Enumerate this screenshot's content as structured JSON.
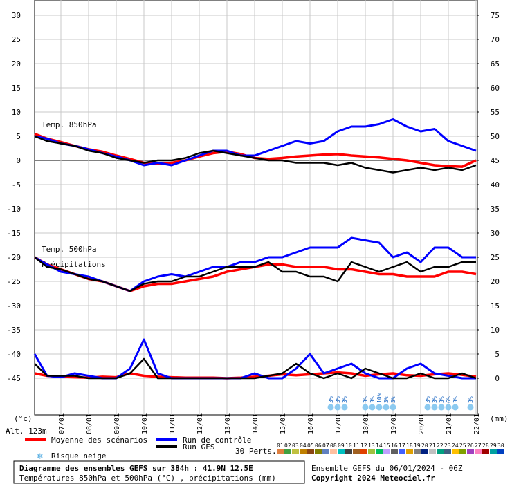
{
  "chart_data": {
    "type": "line",
    "title": "Diagramme des ensembles GEFS sur 384h : 41.9N 12.5E",
    "subtitle": "Températures 850hPa et 500hPa (°C) , précipitations (mm)",
    "run_label": "Ensemble GEFS du 06/01/2024 - 06Z",
    "copyright": "Copyright 2024 Meteociel.fr",
    "ylabel": "(°c)",
    "y2label": "(mm)",
    "altitude": "Alt. 123m",
    "panel_labels": [
      "Temp. 850hPa",
      "Temp. 500hPa",
      "Précipitations"
    ],
    "grid": true,
    "xlim": [
      6.05,
      22.05
    ],
    "xticks": [
      {
        "value": 7,
        "label": "07/01"
      },
      {
        "value": 8,
        "label": "08/01"
      },
      {
        "value": 9,
        "label": "09/01"
      },
      {
        "value": 10,
        "label": "10/01"
      },
      {
        "value": 11,
        "label": "11/01"
      },
      {
        "value": 12,
        "label": "12/01"
      },
      {
        "value": 13,
        "label": "13/01"
      },
      {
        "value": 14,
        "label": "14/01"
      },
      {
        "value": 15,
        "label": "15/01"
      },
      {
        "value": 16,
        "label": "16/01"
      },
      {
        "value": 17,
        "label": "17/01"
      },
      {
        "value": 18,
        "label": "18/01"
      },
      {
        "value": 19,
        "label": "19/01"
      },
      {
        "value": 20,
        "label": "20/01"
      },
      {
        "value": 21,
        "label": "21/01"
      },
      {
        "value": 22,
        "label": "22/01"
      }
    ],
    "ylim": [
      -52.57,
      33.14
    ],
    "yticks": [
      -45,
      -40,
      -35,
      -30,
      -25,
      -20,
      -15,
      -10,
      -5,
      0,
      5,
      10,
      15,
      20,
      25,
      30
    ],
    "y2lim": [
      -7.57,
      78.14
    ],
    "y2ticks": [
      0,
      5,
      10,
      15,
      20,
      25,
      30,
      35,
      40,
      45,
      50,
      55,
      60,
      65,
      70,
      75
    ],
    "x": [
      6.05,
      6.5,
      7,
      7.5,
      8,
      8.5,
      9,
      9.5,
      10,
      10.5,
      11,
      11.5,
      12,
      12.5,
      13,
      13.5,
      14,
      14.5,
      15,
      15.5,
      16,
      16.5,
      17,
      17.5,
      18,
      18.5,
      19,
      19.5,
      20,
      20.5,
      21,
      21.5,
      22
    ],
    "series": [
      {
        "name": "Moyenne des scénarios",
        "color": "#ff0000",
        "temp850": [
          5.5,
          4.5,
          3.8,
          3,
          2.3,
          1.8,
          1,
          0.3,
          -0.5,
          -0.7,
          -0.5,
          0,
          0.8,
          1.5,
          1.8,
          1.3,
          0.5,
          0.3,
          0.5,
          0.8,
          1,
          1.2,
          1.3,
          1,
          0.8,
          0.6,
          0.3,
          0,
          -0.5,
          -1,
          -1.2,
          -1.3,
          0
        ],
        "temp500": [
          -20,
          -21.5,
          -22.5,
          -23.5,
          -24.5,
          -25,
          -26,
          -27,
          -26,
          -25.5,
          -25.5,
          -25,
          -24.5,
          -24,
          -23,
          -22.5,
          -22,
          -21.5,
          -21.5,
          -22,
          -22,
          -22,
          -22.5,
          -22.5,
          -23,
          -23.5,
          -23.5,
          -24,
          -24,
          -24,
          -23,
          -23,
          -23.5
        ],
        "precip": [
          1,
          0.5,
          0.3,
          0.2,
          0.1,
          0.3,
          0.2,
          1,
          0.5,
          0.3,
          0.2,
          0.1,
          0.1,
          0.1,
          0,
          0.1,
          0.3,
          0.5,
          0.8,
          0.6,
          0.8,
          1,
          1.2,
          1,
          0.5,
          0.8,
          1,
          0.6,
          0.5,
          0.8,
          1,
          0.7,
          0.3
        ]
      },
      {
        "name": "Run de contrôle",
        "color": "#0000ff",
        "temp850": [
          5,
          4.5,
          3.5,
          3,
          2.3,
          1.5,
          0.8,
          0,
          -1,
          -0.5,
          -1,
          0,
          1,
          2,
          2,
          1,
          1,
          2,
          3,
          4,
          3.5,
          4,
          6,
          7,
          7,
          7.5,
          8.5,
          7,
          6,
          6.5,
          4,
          3,
          2
        ],
        "temp500": [
          -20,
          -21.5,
          -23,
          -23.5,
          -24,
          -25,
          -26,
          -27,
          -25,
          -24,
          -23.5,
          -24,
          -23,
          -22,
          -22,
          -21,
          -21,
          -20,
          -20,
          -19,
          -18,
          -18,
          -18,
          -16,
          -16.5,
          -17,
          -20,
          -19,
          -21,
          -18,
          -18,
          -20,
          -20
        ],
        "precip": [
          5,
          0.5,
          0.2,
          1,
          0.5,
          0,
          0,
          2,
          8,
          1,
          0,
          0,
          0,
          0,
          0,
          0,
          1,
          0,
          0,
          2,
          5,
          1,
          2,
          3,
          1,
          0,
          0,
          2,
          3,
          1,
          0.5,
          0,
          0
        ]
      },
      {
        "name": "Run GFS",
        "color": "#000000",
        "temp850": [
          5,
          4,
          3.5,
          3,
          2,
          1.5,
          0.5,
          0,
          -0.5,
          0,
          0,
          0.5,
          1.5,
          2,
          1.5,
          1,
          0.5,
          0,
          0,
          -0.5,
          -0.5,
          -0.5,
          -1,
          -0.5,
          -1.5,
          -2,
          -2.5,
          -2,
          -1.5,
          -2,
          -1.5,
          -2,
          -1
        ],
        "temp500": [
          -20,
          -22,
          -22.5,
          -23.5,
          -24.5,
          -25,
          -26,
          -27,
          -25.5,
          -25,
          -25,
          -24,
          -24,
          -23,
          -22,
          -22,
          -22,
          -21,
          -23,
          -23,
          -24,
          -24,
          -25,
          -21,
          -22,
          -23,
          -22,
          -21,
          -23,
          -22,
          -22,
          -21,
          -21
        ],
        "precip": [
          3,
          0.5,
          0.5,
          0.5,
          0,
          0,
          0,
          1,
          4,
          0,
          0,
          0,
          0,
          0,
          0,
          0,
          0,
          0.5,
          1,
          3,
          1,
          0,
          1,
          0,
          2,
          1,
          0,
          0,
          1,
          0,
          0,
          1,
          0
        ]
      }
    ],
    "snow_legend": "Risque neige",
    "snow_risk": [
      {
        "x": 16.75,
        "label": "3%"
      },
      {
        "x": 17.0,
        "label": "3%"
      },
      {
        "x": 17.25,
        "label": "3%"
      },
      {
        "x": 18.0,
        "label": "3%"
      },
      {
        "x": 18.25,
        "label": "3%"
      },
      {
        "x": 18.5,
        "label": "10%"
      },
      {
        "x": 18.75,
        "label": "3%"
      },
      {
        "x": 19.0,
        "label": "3%"
      },
      {
        "x": 20.25,
        "label": "3%"
      },
      {
        "x": 20.5,
        "label": "3%"
      },
      {
        "x": 20.75,
        "label": "3%"
      },
      {
        "x": 21.0,
        "label": "6%"
      },
      {
        "x": 21.25,
        "label": "3%"
      },
      {
        "x": 21.8,
        "label": "3%"
      }
    ],
    "perturbations_label": "30 Perts.",
    "perturbations": [
      {
        "label": "01",
        "color": "#e08040"
      },
      {
        "label": "02",
        "color": "#40a040"
      },
      {
        "label": "03",
        "color": "#c0c040"
      },
      {
        "label": "04",
        "color": "#c08000"
      },
      {
        "label": "05",
        "color": "#8b4513"
      },
      {
        "label": "06",
        "color": "#808000"
      },
      {
        "label": "07",
        "color": "#6080c0"
      },
      {
        "label": "08",
        "color": "#ffc0a0"
      },
      {
        "label": "09",
        "color": "#00c0c0"
      },
      {
        "label": "10",
        "color": "#404040"
      },
      {
        "label": "11",
        "color": "#a06020"
      },
      {
        "label": "12",
        "color": "#e04000"
      },
      {
        "label": "13",
        "color": "#a0c040"
      },
      {
        "label": "14",
        "color": "#00c060"
      },
      {
        "label": "15",
        "color": "#c0a0ff"
      },
      {
        "label": "16",
        "color": "#606060"
      },
      {
        "label": "17",
        "color": "#4060ff"
      },
      {
        "label": "18",
        "color": "#e0a000"
      },
      {
        "label": "19",
        "color": "#808080"
      },
      {
        "label": "20",
        "color": "#002080"
      },
      {
        "label": "21",
        "color": "#c0c0c0"
      },
      {
        "label": "22",
        "color": "#00a080"
      },
      {
        "label": "23",
        "color": "#406080"
      },
      {
        "label": "24",
        "color": "#ffc000"
      },
      {
        "label": "25",
        "color": "#80a000"
      },
      {
        "label": "26",
        "color": "#a040c0"
      },
      {
        "label": "27",
        "color": "#ff80c0"
      },
      {
        "label": "28",
        "color": "#a00000"
      },
      {
        "label": "29",
        "color": "#00a0a0"
      },
      {
        "label": "30",
        "color": "#0040c0"
      }
    ]
  }
}
